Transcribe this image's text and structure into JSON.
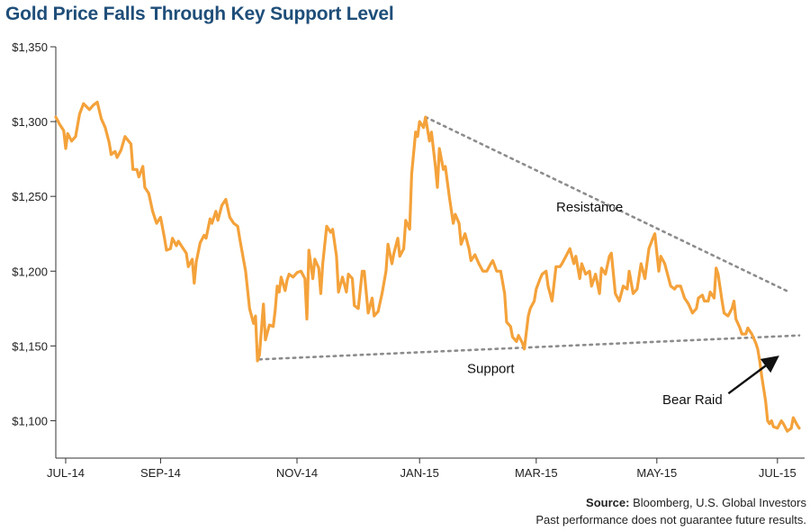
{
  "header": {
    "title": "Gold Price Falls Through Key Support Level"
  },
  "footer": {
    "source_label": "Source:",
    "source_text": "Bloomberg, U.S. Global Investors",
    "disclaimer": "Past performance does not guarantee future results."
  },
  "chart_data": {
    "type": "line",
    "title": "Gold Price Falls Through Key Support Level",
    "xlabel": "",
    "ylabel": "",
    "ylim": [
      1075,
      1350
    ],
    "y_ticks": [
      1350,
      1300,
      1250,
      1200,
      1150,
      1100
    ],
    "y_tick_labels": [
      "$1,350",
      "$1,300",
      "$1,250",
      "$1,200",
      "$1,150",
      "$1,100"
    ],
    "x_range_days": [
      0,
      389
    ],
    "x_ticks": [
      {
        "label": "JUL-14",
        "day": 5
      },
      {
        "label": "SEP-14",
        "day": 53
      },
      {
        "label": "NOV-14",
        "day": 122
      },
      {
        "label": "JAN-15",
        "day": 184
      },
      {
        "label": "MAR-15",
        "day": 243
      },
      {
        "label": "MAY-15",
        "day": 304
      },
      {
        "label": "JUL-15",
        "day": 365
      }
    ],
    "grid": false,
    "series_color": "#f4a23b",
    "series": [
      {
        "name": "",
        "points": [
          [
            0,
            1303
          ],
          [
            2,
            1298
          ],
          [
            4,
            1294
          ],
          [
            5,
            1282
          ],
          [
            6,
            1292
          ],
          [
            8,
            1287
          ],
          [
            10,
            1290
          ],
          [
            12,
            1305
          ],
          [
            14,
            1312
          ],
          [
            17,
            1308
          ],
          [
            19,
            1311
          ],
          [
            21,
            1313
          ],
          [
            23,
            1302
          ],
          [
            25,
            1296
          ],
          [
            27,
            1286
          ],
          [
            28,
            1278
          ],
          [
            30,
            1280
          ],
          [
            31,
            1276
          ],
          [
            33,
            1281
          ],
          [
            35,
            1290
          ],
          [
            38,
            1285
          ],
          [
            39,
            1268
          ],
          [
            41,
            1268
          ],
          [
            42,
            1263
          ],
          [
            44,
            1270
          ],
          [
            45,
            1256
          ],
          [
            47,
            1252
          ],
          [
            49,
            1240
          ],
          [
            51,
            1232
          ],
          [
            53,
            1236
          ],
          [
            55,
            1222
          ],
          [
            56,
            1214
          ],
          [
            58,
            1215
          ],
          [
            59,
            1222
          ],
          [
            61,
            1217
          ],
          [
            62,
            1220
          ],
          [
            64,
            1216
          ],
          [
            66,
            1212
          ],
          [
            67,
            1203
          ],
          [
            69,
            1208
          ],
          [
            70,
            1192
          ],
          [
            71,
            1206
          ],
          [
            73,
            1219
          ],
          [
            75,
            1224
          ],
          [
            76,
            1222
          ],
          [
            78,
            1235
          ],
          [
            79,
            1232
          ],
          [
            81,
            1240
          ],
          [
            82,
            1234
          ],
          [
            84,
            1244
          ],
          [
            86,
            1248
          ],
          [
            88,
            1236
          ],
          [
            90,
            1232
          ],
          [
            92,
            1230
          ],
          [
            93,
            1222
          ],
          [
            96,
            1200
          ],
          [
            98,
            1175
          ],
          [
            100,
            1165
          ],
          [
            101,
            1170
          ],
          [
            102,
            1140
          ],
          [
            103,
            1144
          ],
          [
            105,
            1178
          ],
          [
            106,
            1154
          ],
          [
            108,
            1164
          ],
          [
            110,
            1163
          ],
          [
            111,
            1174
          ],
          [
            112,
            1190
          ],
          [
            113,
            1186
          ],
          [
            114,
            1196
          ],
          [
            116,
            1187
          ],
          [
            117,
            1194
          ],
          [
            118,
            1198
          ],
          [
            120,
            1196
          ],
          [
            122,
            1199
          ],
          [
            124,
            1200
          ],
          [
            126,
            1195
          ],
          [
            127,
            1168
          ],
          [
            128,
            1214
          ],
          [
            130,
            1195
          ],
          [
            131,
            1208
          ],
          [
            133,
            1202
          ],
          [
            134,
            1185
          ],
          [
            135,
            1205
          ],
          [
            137,
            1230
          ],
          [
            139,
            1226
          ],
          [
            140,
            1228
          ],
          [
            142,
            1210
          ],
          [
            143,
            1186
          ],
          [
            145,
            1196
          ],
          [
            147,
            1186
          ],
          [
            148,
            1198
          ],
          [
            150,
            1195
          ],
          [
            151,
            1177
          ],
          [
            153,
            1175
          ],
          [
            155,
            1200
          ],
          [
            156,
            1200
          ],
          [
            158,
            1172
          ],
          [
            160,
            1182
          ],
          [
            161,
            1170
          ],
          [
            163,
            1173
          ],
          [
            165,
            1185
          ],
          [
            167,
            1200
          ],
          [
            168,
            1218
          ],
          [
            170,
            1205
          ],
          [
            171,
            1212
          ],
          [
            173,
            1222
          ],
          [
            174,
            1210
          ],
          [
            176,
            1215
          ],
          [
            177,
            1234
          ],
          [
            179,
            1228
          ],
          [
            180,
            1265
          ],
          [
            182,
            1293
          ],
          [
            183,
            1290
          ],
          [
            184,
            1300
          ],
          [
            186,
            1296
          ],
          [
            187,
            1303
          ],
          [
            189,
            1287
          ],
          [
            190,
            1293
          ],
          [
            192,
            1270
          ],
          [
            193,
            1256
          ],
          [
            194,
            1282
          ],
          [
            196,
            1268
          ],
          [
            197,
            1270
          ],
          [
            199,
            1250
          ],
          [
            201,
            1232
          ],
          [
            202,
            1238
          ],
          [
            204,
            1232
          ],
          [
            205,
            1218
          ],
          [
            207,
            1225
          ],
          [
            209,
            1215
          ],
          [
            210,
            1207
          ],
          [
            212,
            1211
          ],
          [
            214,
            1205
          ],
          [
            216,
            1200
          ],
          [
            218,
            1200
          ],
          [
            220,
            1205
          ],
          [
            221,
            1207
          ],
          [
            223,
            1200
          ],
          [
            225,
            1200
          ],
          [
            227,
            1185
          ],
          [
            228,
            1166
          ],
          [
            230,
            1163
          ],
          [
            231,
            1156
          ],
          [
            233,
            1153
          ],
          [
            234,
            1157
          ],
          [
            236,
            1152
          ],
          [
            237,
            1148
          ],
          [
            239,
            1170
          ],
          [
            240,
            1175
          ],
          [
            242,
            1180
          ],
          [
            243,
            1188
          ],
          [
            245,
            1195
          ],
          [
            246,
            1198
          ],
          [
            248,
            1200
          ],
          [
            249,
            1190
          ],
          [
            251,
            1180
          ],
          [
            253,
            1203
          ],
          [
            255,
            1203
          ],
          [
            256,
            1205
          ],
          [
            258,
            1210
          ],
          [
            260,
            1215
          ],
          [
            262,
            1205
          ],
          [
            263,
            1210
          ],
          [
            265,
            1195
          ],
          [
            266,
            1205
          ],
          [
            268,
            1198
          ],
          [
            270,
            1200
          ],
          [
            271,
            1190
          ],
          [
            273,
            1198
          ],
          [
            275,
            1185
          ],
          [
            276,
            1202
          ],
          [
            278,
            1198
          ],
          [
            280,
            1210
          ],
          [
            281,
            1212
          ],
          [
            283,
            1185
          ],
          [
            285,
            1180
          ],
          [
            287,
            1190
          ],
          [
            289,
            1188
          ],
          [
            290,
            1200
          ],
          [
            292,
            1185
          ],
          [
            294,
            1188
          ],
          [
            296,
            1205
          ],
          [
            298,
            1195
          ],
          [
            300,
            1215
          ],
          [
            302,
            1222
          ],
          [
            303,
            1225
          ],
          [
            305,
            1200
          ],
          [
            306,
            1210
          ],
          [
            308,
            1205
          ],
          [
            309,
            1200
          ],
          [
            311,
            1190
          ],
          [
            313,
            1188
          ],
          [
            314,
            1190
          ],
          [
            316,
            1190
          ],
          [
            318,
            1182
          ],
          [
            320,
            1178
          ],
          [
            322,
            1172
          ],
          [
            324,
            1175
          ],
          [
            325,
            1182
          ],
          [
            327,
            1184
          ],
          [
            328,
            1180
          ],
          [
            330,
            1180
          ],
          [
            331,
            1186
          ],
          [
            333,
            1182
          ],
          [
            334,
            1202
          ],
          [
            335,
            1198
          ],
          [
            337,
            1180
          ],
          [
            338,
            1172
          ],
          [
            340,
            1170
          ],
          [
            342,
            1175
          ],
          [
            343,
            1180
          ],
          [
            344,
            1168
          ],
          [
            345,
            1165
          ],
          [
            346,
            1162
          ],
          [
            347,
            1158
          ],
          [
            349,
            1158
          ],
          [
            350,
            1162
          ],
          [
            352,
            1158
          ],
          [
            354,
            1152
          ],
          [
            355,
            1148
          ],
          [
            356,
            1140
          ],
          [
            357,
            1130
          ],
          [
            359,
            1113
          ],
          [
            360,
            1100
          ],
          [
            361,
            1098
          ],
          [
            362,
            1100
          ],
          [
            363,
            1096
          ],
          [
            365,
            1095
          ],
          [
            367,
            1100
          ],
          [
            368,
            1098
          ],
          [
            370,
            1093
          ],
          [
            372,
            1095
          ],
          [
            373,
            1102
          ],
          [
            375,
            1097
          ],
          [
            376,
            1095
          ]
        ]
      }
    ],
    "trendlines": [
      {
        "label": "Resistance",
        "from": [
          187,
          1303
        ],
        "to": [
          371,
          1186
        ]
      },
      {
        "label": "Support",
        "from": [
          103,
          1141
        ],
        "to": [
          376,
          1157
        ]
      }
    ],
    "annotations": [
      {
        "text": "Resistance",
        "day": 270,
        "value": 1240
      },
      {
        "text": "Support",
        "day": 220,
        "value": 1132
      },
      {
        "text": "Bear Raid",
        "day": 322,
        "value": 1111,
        "arrow_to": [
          366,
          1143
        ]
      }
    ]
  }
}
